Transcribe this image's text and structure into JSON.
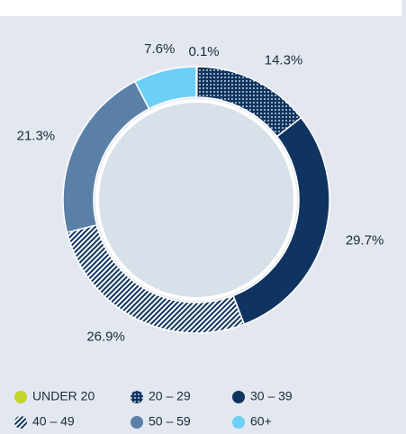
{
  "chart_data": {
    "type": "donut",
    "categories": [
      "UNDER 20",
      "20 – 29",
      "30 – 39",
      "40 – 49",
      "50 – 59",
      "60+"
    ],
    "values": [
      0.1,
      14.3,
      29.7,
      26.9,
      21.3,
      7.6
    ],
    "value_labels": [
      "0.1%",
      "14.3%",
      "29.7%",
      "26.9%",
      "21.3%",
      "7.6%"
    ],
    "colors": [
      "#c3d42b",
      "#0f3460",
      "#0f3460",
      "#0f3460",
      "#5b80a8",
      "#6dcff6"
    ],
    "patterns": [
      "solid",
      "dots",
      "solid",
      "hatch",
      "solid",
      "solid"
    ]
  }
}
